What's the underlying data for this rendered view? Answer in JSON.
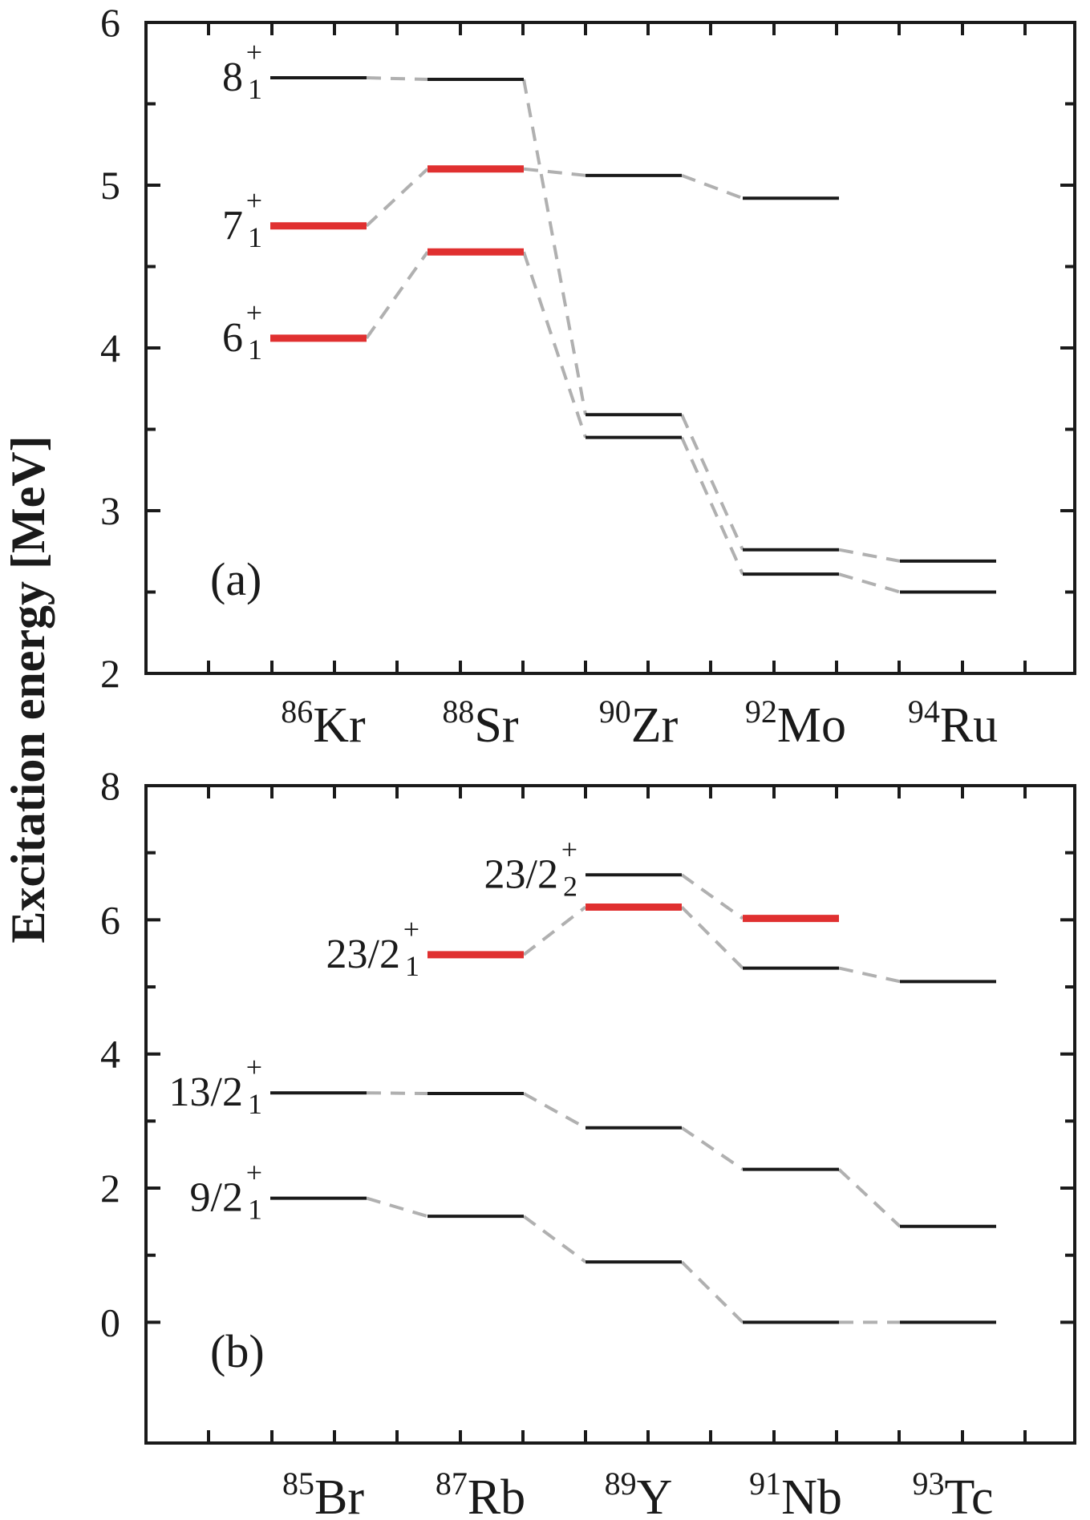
{
  "chart_data": {
    "type": "line",
    "ylabel": "Excitation energy [MeV]",
    "colors": {
      "level": "#1a1a1a",
      "highlight": "#e03030",
      "connector": "#b0b0b0",
      "axis": "#1a1a1a"
    },
    "panels": [
      {
        "panel_label": "(a)",
        "ylim": [
          2,
          6
        ],
        "yticks": [
          "2",
          "3",
          "4",
          "5",
          "6"
        ],
        "nuclei": [
          {
            "mass": "86",
            "symbol": "Kr"
          },
          {
            "mass": "88",
            "symbol": "Sr"
          },
          {
            "mass": "90",
            "symbol": "Zr"
          },
          {
            "mass": "92",
            "symbol": "Mo"
          },
          {
            "mass": "94",
            "symbol": "Ru"
          }
        ],
        "series": [
          {
            "label": {
              "main": "8",
              "sup": "+",
              "sub": "1"
            },
            "values": [
              5.66,
              5.65,
              3.59,
              2.76,
              2.69
            ],
            "highlight": [
              false,
              false,
              false,
              false,
              false
            ]
          },
          {
            "label": {
              "main": "7",
              "sup": "+",
              "sub": "1"
            },
            "values": [
              4.75,
              5.1,
              5.06,
              4.92,
              null
            ],
            "highlight": [
              true,
              true,
              false,
              false,
              false
            ]
          },
          {
            "label": {
              "main": "6",
              "sup": "+",
              "sub": "1"
            },
            "values": [
              4.06,
              4.59,
              3.45,
              2.61,
              2.5
            ],
            "highlight": [
              true,
              true,
              false,
              false,
              false
            ]
          }
        ]
      },
      {
        "panel_label": "(b)",
        "ylim": [
          -1.8,
          8
        ],
        "yticks": [
          "0",
          "2",
          "4",
          "6",
          "8"
        ],
        "nuclei": [
          {
            "mass": "85",
            "symbol": "Br"
          },
          {
            "mass": "87",
            "symbol": "Rb"
          },
          {
            "mass": "89",
            "symbol": "Y"
          },
          {
            "mass": "91",
            "symbol": "Nb"
          },
          {
            "mass": "93",
            "symbol": "Tc"
          }
        ],
        "series": [
          {
            "label": {
              "main": "23/2",
              "sup": "+",
              "sub": "2"
            },
            "values": [
              null,
              null,
              6.67,
              6.02,
              null
            ],
            "highlight": [
              false,
              false,
              false,
              true,
              false
            ]
          },
          {
            "label": {
              "main": "23/2",
              "sup": "+",
              "sub": "1"
            },
            "values": [
              null,
              5.48,
              6.19,
              5.28,
              5.08
            ],
            "highlight": [
              false,
              true,
              true,
              false,
              false
            ]
          },
          {
            "label": {
              "main": "13/2",
              "sup": "+",
              "sub": "1"
            },
            "values": [
              3.42,
              3.41,
              2.9,
              2.28,
              1.43
            ],
            "highlight": [
              false,
              false,
              false,
              false,
              false
            ]
          },
          {
            "label": {
              "main": "9/2",
              "sup": "+",
              "sub": "1"
            },
            "values": [
              1.85,
              1.58,
              0.9,
              0.0,
              0.0
            ],
            "highlight": [
              false,
              false,
              false,
              false,
              false
            ]
          }
        ]
      }
    ]
  }
}
